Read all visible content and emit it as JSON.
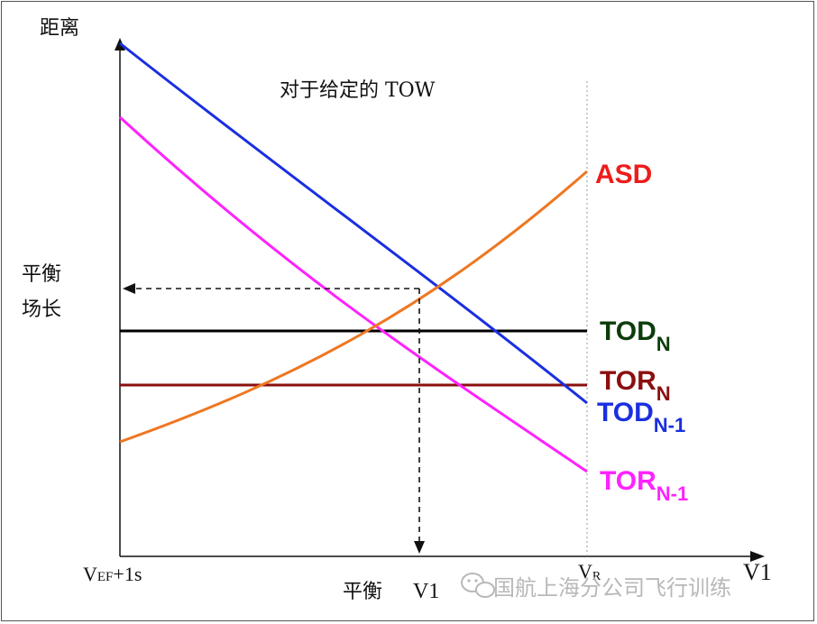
{
  "axes": {
    "y_label": "距离",
    "x_label": "V1",
    "x_start_label": "V",
    "x_start_sub": "EF",
    "x_start_suffix": "+1s",
    "vr_label": "V",
    "vr_sub": "R",
    "v1_label": "V1",
    "balanced_x_label": "平衡",
    "balanced_y_label_line1": "平衡",
    "balanced_y_label_line2": "场长"
  },
  "title": "对于给定的 TOW",
  "curves": [
    {
      "id": "asd",
      "main": "ASD",
      "sub": "",
      "color": "#ee7722"
    },
    {
      "id": "tod_n",
      "main": "TOD",
      "sub": "N",
      "color": "#0b3d0b"
    },
    {
      "id": "tor_n",
      "main": "TOR",
      "sub": "N",
      "color": "#8b0f0f"
    },
    {
      "id": "tod_n1",
      "main": "TOD",
      "sub": "N-1",
      "color": "#1a2fe0"
    },
    {
      "id": "tor_n1",
      "main": "TOR",
      "sub": "N-1",
      "color": "#ff22ff"
    }
  ],
  "label_colors": {
    "asd": "#ee1c1c",
    "tod_n": "#0b3d0b",
    "tor_n": "#8b0f0f",
    "tod_n1": "#1a2fe0",
    "tor_n1": "#ff22ff"
  },
  "watermark": "国航上海分公司飞行训练"
}
